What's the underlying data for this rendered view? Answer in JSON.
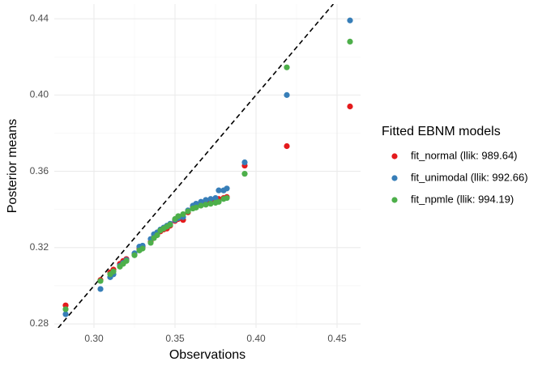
{
  "chart_data": {
    "type": "scatter",
    "x_label": "Observations",
    "y_label": "Posterior means",
    "legend_title": "Fitted EBNM models",
    "legend_position": "right",
    "grid": true,
    "diagonal": true,
    "xlim": [
      0.2755,
      0.4645
    ],
    "ylim": [
      0.2779,
      0.4477
    ],
    "xticks": [
      {
        "value": 0.3,
        "label": "0.30"
      },
      0.35,
      {
        "value": 0.4,
        "label": "0.40"
      },
      0.45
    ],
    "yticks": [
      0.28,
      0.32,
      0.36,
      {
        "value": 0.4,
        "label": "0.40"
      },
      0.44
    ],
    "x": [
      0.2825,
      0.304,
      0.31,
      0.312,
      0.316,
      0.318,
      0.32,
      0.325,
      0.328,
      0.33,
      0.335,
      0.337,
      0.339,
      0.341,
      0.343,
      0.345,
      0.347,
      0.35,
      0.352,
      0.355,
      0.358,
      0.361,
      0.363,
      0.366,
      0.369,
      0.372,
      0.375,
      0.377,
      0.38,
      0.382,
      0.393,
      0.419,
      0.458
    ],
    "series": [
      {
        "name": "fit_normal (llik: 989.64)",
        "color": "#e41a1c",
        "values": [
          0.2897,
          0.303,
          0.307,
          0.3085,
          0.3115,
          0.313,
          0.314,
          0.3165,
          0.3195,
          0.3205,
          0.323,
          0.3255,
          0.327,
          0.3285,
          0.3295,
          0.33,
          0.3315,
          0.334,
          0.335,
          0.3345,
          0.3385,
          0.341,
          0.342,
          0.343,
          0.344,
          0.3445,
          0.345,
          0.3455,
          0.346,
          0.3465,
          0.363,
          0.3732,
          0.394
        ]
      },
      {
        "name": "fit_unimodal (llik: 992.66)",
        "color": "#377eb8",
        "values": [
          0.2851,
          0.2983,
          0.3045,
          0.306,
          0.3105,
          0.312,
          0.3135,
          0.317,
          0.3205,
          0.321,
          0.3245,
          0.327,
          0.328,
          0.3295,
          0.3305,
          0.3315,
          0.3325,
          0.3345,
          0.3355,
          0.336,
          0.3395,
          0.342,
          0.343,
          0.344,
          0.345,
          0.3455,
          0.346,
          0.35,
          0.35,
          0.351,
          0.3647,
          0.4,
          0.4391
        ]
      },
      {
        "name": "fit_npmle (llik: 994.19)",
        "color": "#4daf4a",
        "values": [
          0.2877,
          0.3025,
          0.306,
          0.3075,
          0.31,
          0.3115,
          0.313,
          0.316,
          0.3185,
          0.3195,
          0.3225,
          0.325,
          0.3265,
          0.329,
          0.33,
          0.331,
          0.332,
          0.335,
          0.3365,
          0.3375,
          0.339,
          0.3405,
          0.341,
          0.342,
          0.3425,
          0.343,
          0.3435,
          0.344,
          0.3455,
          0.346,
          0.3587,
          0.4145,
          0.428
        ]
      }
    ]
  }
}
